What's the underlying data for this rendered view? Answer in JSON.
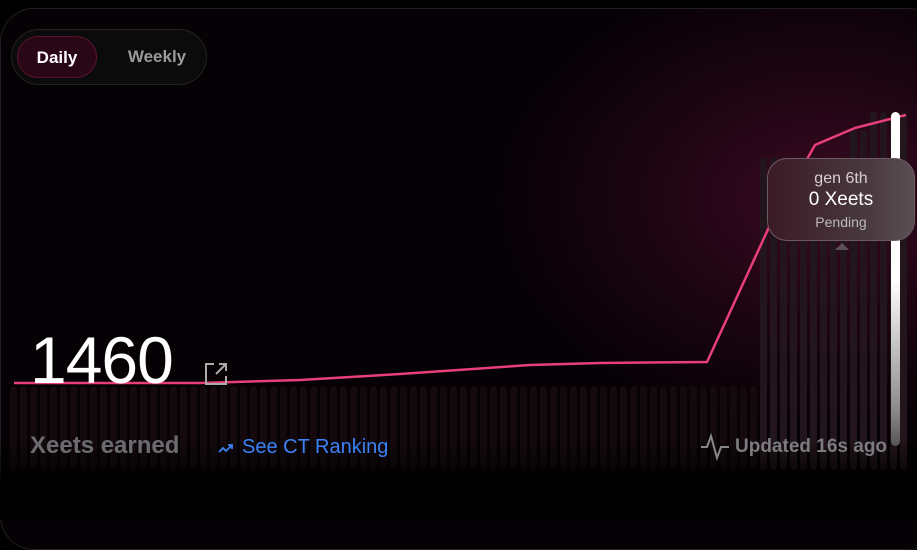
{
  "tabs": [
    {
      "label": "Daily",
      "active": true
    },
    {
      "label": "Weekly",
      "active": false
    }
  ],
  "total": "1460",
  "total_label": "Xeets earned",
  "ranking_link": "See CT Ranking",
  "updated": "Updated 16s ago",
  "tooltip": {
    "title": "gen 6th",
    "value": "0 Xeets",
    "status": "Pending"
  },
  "colors": {
    "line": "#e83e7a",
    "link": "#3b82f6",
    "active_tab": "#2a0716"
  },
  "icons": {
    "external": "external-link-icon",
    "trend": "trending-up-icon",
    "activity": "activity-pulse-icon"
  }
}
